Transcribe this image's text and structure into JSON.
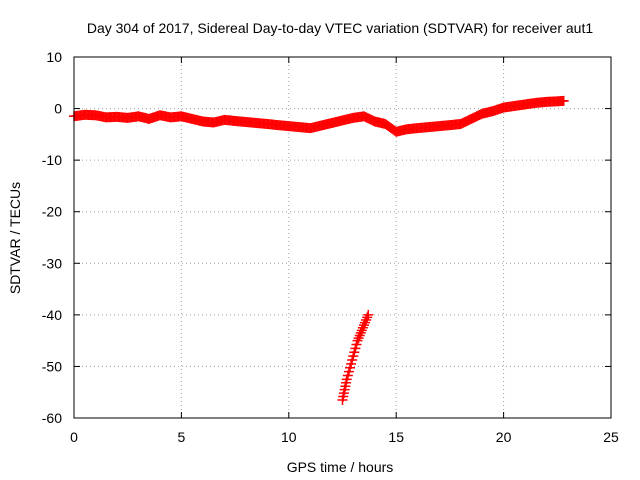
{
  "chart_data": {
    "type": "scatter",
    "title": "Day 304 of 2017, Sidereal Day-to-day VTEC variation (SDTVAR) for receiver aut1",
    "xlabel": "GPS time / hours",
    "ylabel": "SDTVAR / TECUs",
    "xlim": [
      0,
      25
    ],
    "ylim": [
      -60,
      10
    ],
    "xticks": [
      0,
      5,
      10,
      15,
      20,
      25
    ],
    "yticks": [
      -60,
      -50,
      -40,
      -30,
      -20,
      -10,
      0,
      10
    ],
    "xtick_labels": [
      "0",
      "5",
      "10",
      "15",
      "20",
      "25"
    ],
    "ytick_labels": [
      "-60",
      "-50",
      "-40",
      "-30",
      "-20",
      "-10",
      "0",
      "10"
    ],
    "grid": true,
    "marker": "+",
    "color": "#ff0000",
    "series": [
      {
        "name": "main",
        "x": [
          0.0,
          0.5,
          1.0,
          1.5,
          2.0,
          2.5,
          3.0,
          3.5,
          4.0,
          4.5,
          5.0,
          5.5,
          6.0,
          6.5,
          7.0,
          7.5,
          8.0,
          8.5,
          9.0,
          9.5,
          10.0,
          10.5,
          11.0,
          11.5,
          12.0,
          12.5,
          13.0,
          13.5,
          14.0,
          14.5,
          15.0,
          15.5,
          16.0,
          16.5,
          17.0,
          17.5,
          18.0,
          18.5,
          19.0,
          19.5,
          20.0,
          20.5,
          21.0,
          21.5,
          22.0,
          22.5,
          22.8
        ],
        "y": [
          -1.5,
          -1.2,
          -1.3,
          -1.7,
          -1.6,
          -1.8,
          -1.5,
          -2.0,
          -1.3,
          -1.7,
          -1.5,
          -2.0,
          -2.5,
          -2.7,
          -2.2,
          -2.4,
          -2.6,
          -2.8,
          -3.0,
          -3.2,
          -3.4,
          -3.6,
          -3.8,
          -3.3,
          -2.8,
          -2.3,
          -1.8,
          -1.5,
          -2.5,
          -3.0,
          -4.5,
          -4.0,
          -3.8,
          -3.6,
          -3.4,
          -3.2,
          -3.0,
          -2.0,
          -1.0,
          -0.5,
          0.2,
          0.5,
          0.8,
          1.1,
          1.3,
          1.4,
          1.5
        ]
      },
      {
        "name": "excursion",
        "x": [
          12.5,
          12.6,
          12.7,
          12.8,
          12.9,
          13.0,
          13.1,
          13.2,
          13.3,
          13.4,
          13.5,
          13.6,
          13.7
        ],
        "y": [
          -56.5,
          -54.5,
          -52.5,
          -51.0,
          -49.5,
          -48.0,
          -46.5,
          -45.0,
          -44.0,
          -43.0,
          -42.0,
          -41.0,
          -40.0
        ]
      }
    ]
  }
}
